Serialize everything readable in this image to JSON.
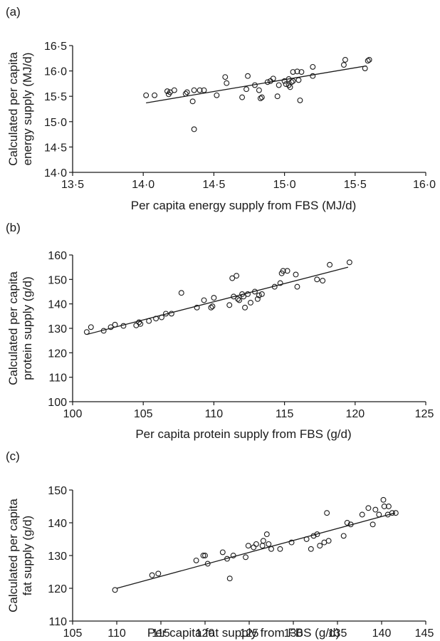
{
  "chart_data": [
    {
      "type": "scatter",
      "panel": "(a)",
      "xlabel": "Per capita energy supply from FBS (MJ/d)",
      "ylabel": "Calculated per capita energy supply (MJ/d)",
      "ylabel_lines": [
        "Calculated per capita",
        "energy supply (MJ/d)"
      ],
      "xlim": [
        13.5,
        16.0
      ],
      "ylim": [
        14.0,
        16.5
      ],
      "xticks": [
        "13·5",
        "14·0",
        "14·5",
        "15·0",
        "15·5",
        "16·0"
      ],
      "yticks": [
        "14·0",
        "14·5",
        "15·0",
        "15·5",
        "16·0",
        "16·5"
      ],
      "fit_line": [
        [
          14.02,
          15.37
        ],
        [
          15.58,
          16.1
        ]
      ],
      "points": [
        [
          14.02,
          15.52
        ],
        [
          14.08,
          15.52
        ],
        [
          14.17,
          15.6
        ],
        [
          14.19,
          15.58
        ],
        [
          14.22,
          15.62
        ],
        [
          14.18,
          15.54
        ],
        [
          14.31,
          15.58
        ],
        [
          14.3,
          15.55
        ],
        [
          14.35,
          15.4
        ],
        [
          14.36,
          15.62
        ],
        [
          14.4,
          15.62
        ],
        [
          14.43,
          15.62
        ],
        [
          14.36,
          14.85
        ],
        [
          14.52,
          15.52
        ],
        [
          14.58,
          15.88
        ],
        [
          14.59,
          15.76
        ],
        [
          14.7,
          15.48
        ],
        [
          14.73,
          15.64
        ],
        [
          14.74,
          15.9
        ],
        [
          14.79,
          15.72
        ],
        [
          14.82,
          15.62
        ],
        [
          14.83,
          15.46
        ],
        [
          14.84,
          15.48
        ],
        [
          14.88,
          15.78
        ],
        [
          14.9,
          15.8
        ],
        [
          14.92,
          15.85
        ],
        [
          14.95,
          15.5
        ],
        [
          14.96,
          15.72
        ],
        [
          15.0,
          15.8
        ],
        [
          15.01,
          15.74
        ],
        [
          15.03,
          15.72
        ],
        [
          15.03,
          15.84
        ],
        [
          15.04,
          15.68
        ],
        [
          15.05,
          15.78
        ],
        [
          15.06,
          15.8
        ],
        [
          15.06,
          15.98
        ],
        [
          15.09,
          15.99
        ],
        [
          15.1,
          15.82
        ],
        [
          15.11,
          15.42
        ],
        [
          15.12,
          15.98
        ],
        [
          15.2,
          15.9
        ],
        [
          15.2,
          16.08
        ],
        [
          15.42,
          16.12
        ],
        [
          15.43,
          16.22
        ],
        [
          15.57,
          16.05
        ],
        [
          15.59,
          16.2
        ],
        [
          15.6,
          16.22
        ]
      ]
    },
    {
      "type": "scatter",
      "panel": "(b)",
      "xlabel": "Per capita protein supply from FBS (g/d)",
      "ylabel": "Calculated per capita protein supply (g/d)",
      "ylabel_lines": [
        "Calculated per capita",
        "protein supply (g/d)"
      ],
      "xlim": [
        100,
        125
      ],
      "ylim": [
        100,
        160
      ],
      "xticks": [
        "100",
        "105",
        "110",
        "115",
        "120",
        "125"
      ],
      "yticks": [
        "100",
        "110",
        "120",
        "130",
        "140",
        "150",
        "160"
      ],
      "fit_line": [
        [
          101,
          127.5
        ],
        [
          119.5,
          155.0
        ]
      ],
      "points": [
        [
          101.0,
          128.5
        ],
        [
          101.3,
          130.5
        ],
        [
          102.2,
          129.0
        ],
        [
          102.7,
          130.5
        ],
        [
          103.0,
          131.5
        ],
        [
          103.6,
          131.0
        ],
        [
          104.5,
          131.2
        ],
        [
          104.7,
          132.5
        ],
        [
          104.8,
          131.8
        ],
        [
          105.4,
          133.0
        ],
        [
          105.9,
          134.0
        ],
        [
          106.3,
          134.5
        ],
        [
          106.6,
          136.0
        ],
        [
          107.0,
          136.0
        ],
        [
          107.7,
          144.5
        ],
        [
          108.8,
          138.5
        ],
        [
          109.3,
          141.5
        ],
        [
          109.8,
          138.5
        ],
        [
          109.9,
          139.0
        ],
        [
          110.0,
          142.5
        ],
        [
          111.1,
          139.5
        ],
        [
          111.3,
          150.5
        ],
        [
          111.4,
          143.0
        ],
        [
          111.6,
          151.5
        ],
        [
          111.7,
          142.0
        ],
        [
          111.8,
          141.5
        ],
        [
          112.0,
          144.0
        ],
        [
          112.1,
          143.0
        ],
        [
          112.2,
          138.5
        ],
        [
          112.4,
          144.0
        ],
        [
          112.6,
          140.5
        ],
        [
          112.9,
          145.0
        ],
        [
          113.1,
          142.0
        ],
        [
          113.2,
          143.5
        ],
        [
          113.4,
          144.0
        ],
        [
          114.3,
          147.0
        ],
        [
          114.7,
          148.5
        ],
        [
          114.8,
          152.5
        ],
        [
          114.9,
          153.5
        ],
        [
          115.2,
          153.5
        ],
        [
          115.8,
          152.0
        ],
        [
          115.9,
          147.0
        ],
        [
          117.3,
          150.0
        ],
        [
          117.7,
          149.5
        ],
        [
          118.2,
          156.0
        ],
        [
          119.6,
          157.0
        ]
      ]
    },
    {
      "type": "scatter",
      "panel": "(c)",
      "xlabel": "Per capita fat supply from FBS (g/d)",
      "ylabel": "Calculated per capita fat supply (g/d)",
      "ylabel_lines": [
        "Calculated per capita",
        "fat supply (g/d)"
      ],
      "xlim": [
        105,
        145
      ],
      "ylim": [
        110,
        150
      ],
      "xticks": [
        "105",
        "110",
        "115",
        "120",
        "125",
        "130",
        "135",
        "140",
        "145"
      ],
      "yticks": [
        "110",
        "120",
        "130",
        "140",
        "150"
      ],
      "fit_line": [
        [
          110,
          120.0
        ],
        [
          141.5,
          143.0
        ]
      ],
      "points": [
        [
          109.8,
          119.5
        ],
        [
          114.0,
          124.0
        ],
        [
          114.7,
          124.5
        ],
        [
          119.0,
          128.5
        ],
        [
          119.8,
          130.0
        ],
        [
          120.0,
          130.0
        ],
        [
          120.3,
          127.5
        ],
        [
          122.0,
          131.0
        ],
        [
          122.5,
          129.0
        ],
        [
          122.8,
          123.0
        ],
        [
          123.2,
          130.0
        ],
        [
          124.6,
          129.5
        ],
        [
          124.9,
          133.0
        ],
        [
          125.5,
          132.5
        ],
        [
          125.8,
          133.5
        ],
        [
          126.5,
          133.0
        ],
        [
          126.6,
          134.5
        ],
        [
          127.0,
          136.5
        ],
        [
          127.2,
          133.5
        ],
        [
          127.5,
          132.0
        ],
        [
          128.5,
          132.0
        ],
        [
          129.8,
          134.0
        ],
        [
          131.5,
          135.0
        ],
        [
          132.0,
          132.0
        ],
        [
          132.3,
          136.0
        ],
        [
          132.7,
          136.5
        ],
        [
          133.0,
          133.0
        ],
        [
          133.5,
          134.0
        ],
        [
          133.8,
          143.0
        ],
        [
          134.0,
          134.5
        ],
        [
          135.7,
          136.0
        ],
        [
          136.1,
          140.0
        ],
        [
          136.5,
          139.5
        ],
        [
          137.8,
          142.5
        ],
        [
          138.5,
          144.5
        ],
        [
          139.0,
          139.5
        ],
        [
          139.3,
          144.0
        ],
        [
          139.7,
          142.5
        ],
        [
          140.2,
          147.0
        ],
        [
          140.3,
          145.0
        ],
        [
          140.7,
          142.5
        ],
        [
          140.8,
          145.0
        ],
        [
          141.2,
          143.0
        ],
        [
          141.6,
          143.0
        ]
      ]
    }
  ]
}
